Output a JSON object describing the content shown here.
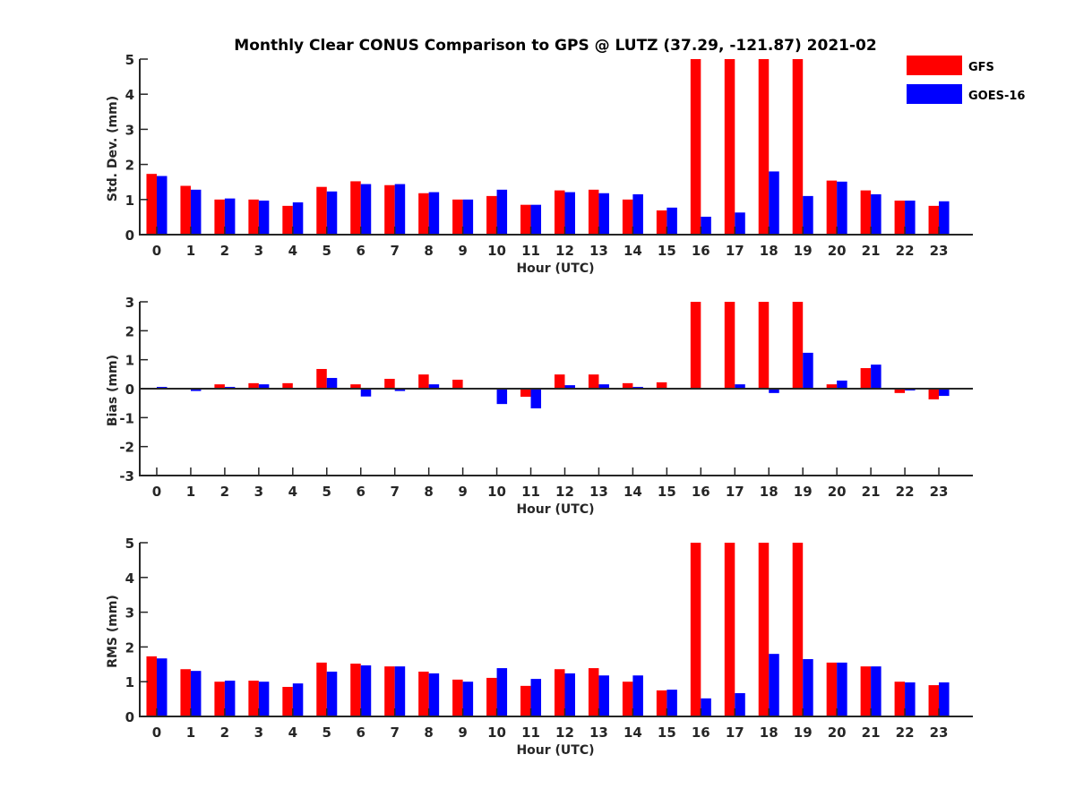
{
  "chart_data": {
    "type": "bar",
    "title": "Monthly Clear CONUS Comparison to GPS @ LUTZ (37.29, -121.87) 2021-02",
    "legend": {
      "placement": "top-right",
      "entries": [
        {
          "name": "GFS",
          "color": "#ff0000"
        },
        {
          "name": "GOES-16",
          "color": "#0000ff"
        }
      ]
    },
    "categories": [
      "0",
      "1",
      "2",
      "3",
      "4",
      "5",
      "6",
      "7",
      "8",
      "9",
      "10",
      "11",
      "12",
      "13",
      "14",
      "15",
      "16",
      "17",
      "18",
      "19",
      "20",
      "21",
      "22",
      "23"
    ],
    "panels": [
      {
        "id": "std",
        "ylabel": "Std. Dev. (mm)",
        "xlabel": "Hour (UTC)",
        "ylim": [
          0,
          5
        ],
        "yticks": [
          0,
          1,
          2,
          3,
          4,
          5
        ],
        "grid": false,
        "note": "GFS bars at hours 16-19 are clipped at the axis maximum",
        "series": [
          {
            "name": "GFS",
            "values": [
              1.73,
              1.39,
              1.0,
              1.0,
              0.82,
              1.36,
              1.52,
              1.41,
              1.18,
              1.0,
              1.1,
              0.85,
              1.26,
              1.28,
              1.0,
              0.69,
              5.0,
              5.0,
              5.0,
              5.0,
              1.54,
              1.26,
              0.97,
              0.82
            ]
          },
          {
            "name": "GOES-16",
            "values": [
              1.67,
              1.28,
              1.03,
              0.97,
              0.92,
              1.23,
              1.44,
              1.44,
              1.21,
              1.0,
              1.28,
              0.85,
              1.21,
              1.18,
              1.15,
              0.77,
              0.51,
              0.63,
              1.8,
              1.1,
              1.51,
              1.15,
              0.97,
              0.95
            ]
          }
        ]
      },
      {
        "id": "bias",
        "ylabel": "Bias (mm)",
        "xlabel": "Hour (UTC)",
        "ylim": [
          -3,
          3
        ],
        "yticks": [
          -3,
          -2,
          -1,
          0,
          1,
          2,
          3
        ],
        "grid": false,
        "zero_line": true,
        "note": "GFS bars at hours 16-19 are clipped at the axis maximum",
        "series": [
          {
            "name": "GFS",
            "values": [
              -0.02,
              0.0,
              0.15,
              0.19,
              0.19,
              0.68,
              0.15,
              0.34,
              0.49,
              0.31,
              -0.03,
              -0.28,
              0.49,
              0.49,
              0.19,
              0.22,
              3.0,
              3.0,
              3.0,
              3.0,
              0.15,
              0.71,
              -0.15,
              -0.37
            ]
          },
          {
            "name": "GOES-16",
            "values": [
              0.06,
              -0.08,
              0.06,
              0.15,
              0.0,
              0.37,
              -0.27,
              -0.08,
              0.15,
              0.0,
              -0.53,
              -0.68,
              0.12,
              0.15,
              0.06,
              0.0,
              0.02,
              0.15,
              -0.15,
              1.24,
              0.28,
              0.83,
              -0.06,
              -0.25
            ]
          }
        ]
      },
      {
        "id": "rms",
        "ylabel": "RMS (mm)",
        "xlabel": "Hour (UTC)",
        "ylim": [
          0,
          5
        ],
        "yticks": [
          0,
          1,
          2,
          3,
          4,
          5
        ],
        "grid": false,
        "note": "GFS bars at hours 16-19 are clipped at the axis maximum",
        "series": [
          {
            "name": "GFS",
            "values": [
              1.73,
              1.36,
              1.0,
              1.03,
              0.85,
              1.55,
              1.52,
              1.44,
              1.29,
              1.06,
              1.11,
              0.88,
              1.36,
              1.39,
              1.0,
              0.75,
              5.0,
              5.0,
              5.0,
              5.0,
              1.55,
              1.44,
              1.0,
              0.9
            ]
          },
          {
            "name": "GOES-16",
            "values": [
              1.67,
              1.31,
              1.03,
              1.0,
              0.95,
              1.29,
              1.47,
              1.44,
              1.24,
              1.0,
              1.39,
              1.08,
              1.24,
              1.18,
              1.18,
              0.77,
              0.52,
              0.67,
              1.8,
              1.65,
              1.55,
              1.44,
              0.98,
              0.98
            ]
          }
        ]
      }
    ]
  }
}
